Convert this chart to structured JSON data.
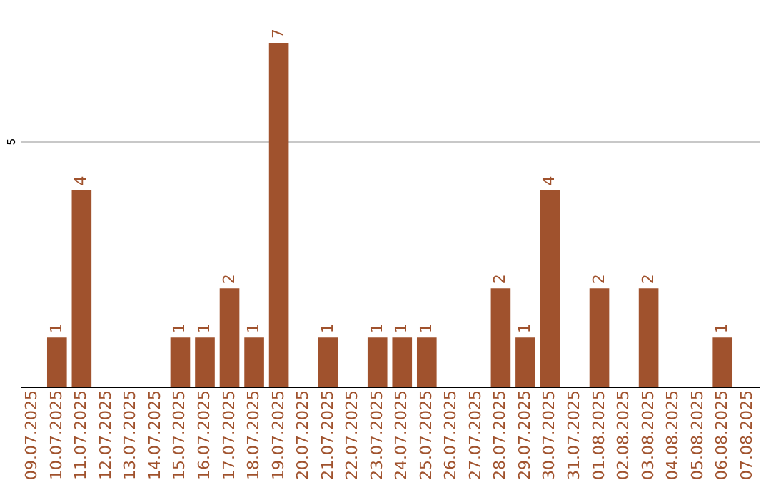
{
  "chart_data": {
    "type": "bar",
    "categories": [
      "09.07.2025",
      "10.07.2025",
      "11.07.2025",
      "12.07.2025",
      "13.07.2025",
      "14.07.2025",
      "15.07.2025",
      "16.07.2025",
      "17.07.2025",
      "18.07.2025",
      "19.07.2025",
      "20.07.2025",
      "21.07.2025",
      "22.07.2025",
      "23.07.2025",
      "24.07.2025",
      "25.07.2025",
      "26.07.2025",
      "27.07.2025",
      "28.07.2025",
      "29.07.2025",
      "30.07.2025",
      "31.07.2025",
      "01.08.2025",
      "02.08.2025",
      "03.08.2025",
      "04.08.2025",
      "05.08.2025",
      "06.08.2025",
      "07.08.2025"
    ],
    "values": [
      0,
      1,
      4,
      0,
      0,
      0,
      1,
      1,
      2,
      1,
      7,
      0,
      1,
      0,
      1,
      1,
      1,
      0,
      0,
      2,
      1,
      4,
      0,
      2,
      0,
      2,
      0,
      0,
      1,
      0
    ],
    "value_labels": [
      null,
      "1",
      "4",
      null,
      null,
      null,
      "1",
      "1",
      "2",
      "1",
      "7",
      null,
      "1",
      null,
      "1",
      "1",
      "1",
      null,
      null,
      "2",
      "1",
      "4",
      null,
      "2",
      null,
      "2",
      null,
      null,
      "1",
      null
    ],
    "color": "#a0522d",
    "ylim": [
      0,
      7
    ],
    "yticks": [
      5
    ],
    "grid": "y"
  }
}
